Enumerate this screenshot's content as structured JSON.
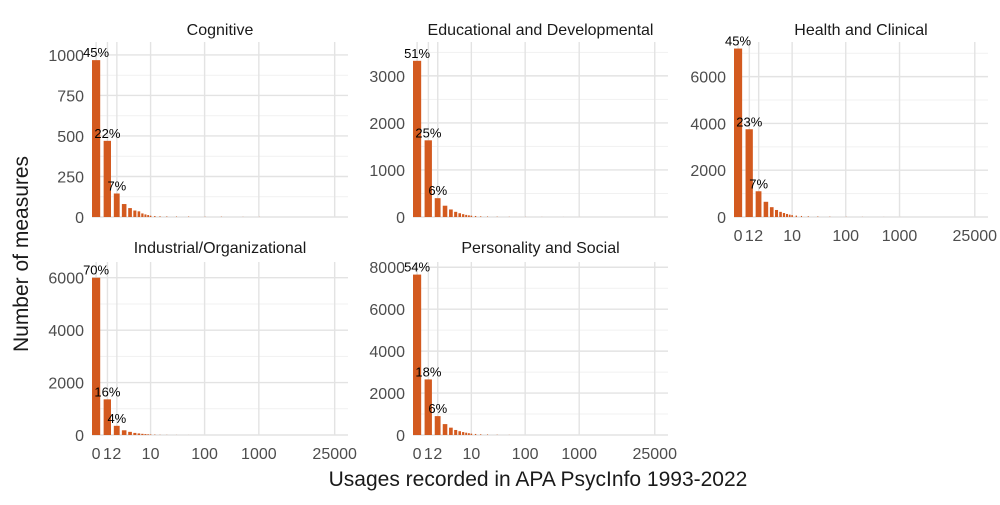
{
  "chart_data": {
    "type": "bar",
    "title": "",
    "xlabel": "Usages recorded in APA PsycInfo 1993-2022",
    "ylabel": "Number of measures",
    "x_scale": "pseudo-log",
    "x_ticks": [
      "0",
      "1",
      "2",
      "10",
      "100",
      "1000",
      "25000"
    ],
    "x_tick_values": [
      0,
      1,
      2,
      10,
      100,
      1000,
      25000
    ],
    "bar_color": "#d35a1f",
    "grid": true,
    "panels": [
      {
        "name": "Cognitive",
        "ylim": [
          0,
          1080
        ],
        "y_ticks": [
          0,
          250,
          500,
          750,
          1000
        ],
        "x": [
          0,
          1,
          2,
          3,
          4,
          5,
          6,
          7,
          8,
          9,
          10,
          12,
          15,
          20,
          30,
          50,
          100,
          200,
          500,
          1000
        ],
        "values": [
          968,
          470,
          145,
          80,
          55,
          40,
          35,
          22,
          16,
          12,
          8,
          6,
          5,
          4,
          3,
          3,
          2,
          2,
          1,
          1
        ],
        "labels": [
          {
            "x": 0,
            "text": "45%"
          },
          {
            "x": 1,
            "text": "22%"
          },
          {
            "x": 2,
            "text": "7%"
          }
        ]
      },
      {
        "name": "Educational and Developmental",
        "ylim": [
          0,
          3720
        ],
        "y_ticks": [
          0,
          1000,
          2000,
          3000
        ],
        "x": [
          0,
          1,
          2,
          3,
          4,
          5,
          6,
          7,
          8,
          9,
          10,
          12,
          15,
          20,
          30,
          50,
          100,
          200,
          500,
          1000
        ],
        "values": [
          3320,
          1630,
          400,
          240,
          160,
          110,
          80,
          60,
          45,
          35,
          28,
          22,
          16,
          12,
          8,
          5,
          3,
          2,
          1,
          1
        ],
        "labels": [
          {
            "x": 0,
            "text": "51%"
          },
          {
            "x": 1,
            "text": "25%"
          },
          {
            "x": 2,
            "text": "6%"
          }
        ]
      },
      {
        "name": "Health and Clinical",
        "ylim": [
          0,
          7480
        ],
        "y_ticks": [
          0,
          2000,
          4000,
          6000
        ],
        "x": [
          0,
          1,
          2,
          3,
          4,
          5,
          6,
          7,
          8,
          9,
          10,
          12,
          15,
          20,
          30,
          50,
          100,
          200,
          500,
          1000
        ],
        "values": [
          7200,
          3750,
          1100,
          650,
          420,
          300,
          220,
          170,
          130,
          100,
          80,
          60,
          45,
          35,
          25,
          15,
          10,
          6,
          3,
          2
        ],
        "labels": [
          {
            "x": 0,
            "text": "45%"
          },
          {
            "x": 1,
            "text": "23%"
          },
          {
            "x": 2,
            "text": "7%"
          }
        ]
      },
      {
        "name": "Industrial/Organizational",
        "ylim": [
          0,
          6600
        ],
        "y_ticks": [
          0,
          2000,
          4000,
          6000
        ],
        "x": [
          0,
          1,
          2,
          3,
          4,
          5,
          6,
          7,
          8,
          9,
          10,
          12,
          15,
          20,
          30,
          50
        ],
        "values": [
          6000,
          1360,
          350,
          180,
          120,
          80,
          60,
          45,
          35,
          25,
          20,
          15,
          10,
          7,
          4,
          2
        ],
        "labels": [
          {
            "x": 0,
            "text": "70%"
          },
          {
            "x": 1,
            "text": "16%"
          },
          {
            "x": 2,
            "text": "4%"
          }
        ]
      },
      {
        "name": "Personality and Social",
        "ylim": [
          0,
          8250
        ],
        "y_ticks": [
          0,
          2000,
          4000,
          6000,
          8000
        ],
        "x": [
          0,
          1,
          2,
          3,
          4,
          5,
          6,
          7,
          8,
          9,
          10,
          12,
          15,
          20,
          30,
          50
        ],
        "values": [
          7650,
          2650,
          900,
          520,
          350,
          240,
          180,
          140,
          110,
          85,
          65,
          50,
          38,
          27,
          15,
          7
        ],
        "labels": [
          {
            "x": 0,
            "text": "54%"
          },
          {
            "x": 1,
            "text": "18%"
          },
          {
            "x": 2,
            "text": "6%"
          }
        ]
      }
    ]
  }
}
